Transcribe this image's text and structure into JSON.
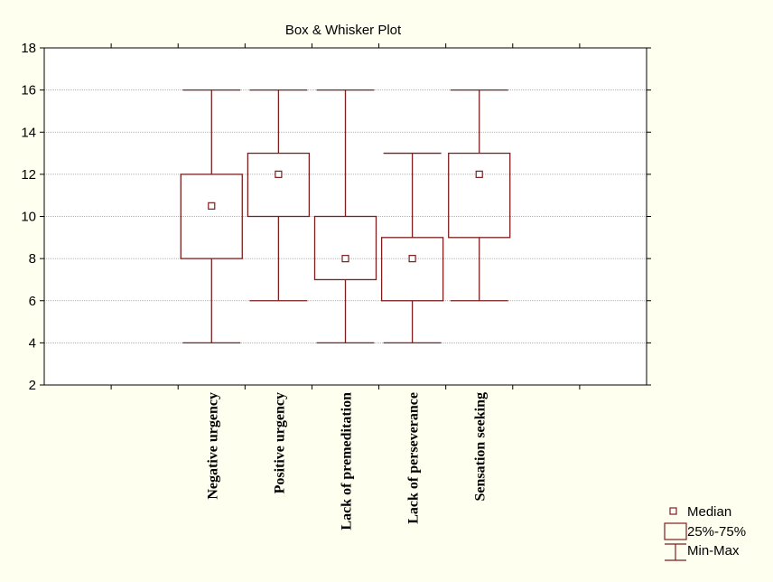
{
  "chart_data": {
    "type": "boxplot",
    "title": "Box & Whisker Plot",
    "xlabel": "",
    "ylabel": "",
    "ylim": [
      2,
      18
    ],
    "yticks": [
      2,
      4,
      6,
      8,
      10,
      12,
      14,
      16,
      18
    ],
    "grid": true,
    "categories": [
      "Negative urgency",
      "Positive urgency",
      "Lack of premeditation",
      "Lack of perseverance",
      "Sensation seeking"
    ],
    "boxes": [
      {
        "min": 4,
        "q1": 8,
        "median": 10.5,
        "q3": 12,
        "max": 16
      },
      {
        "min": 6,
        "q1": 10,
        "median": 12,
        "q3": 13,
        "max": 16
      },
      {
        "min": 4,
        "q1": 7,
        "median": 8,
        "q3": 10,
        "max": 16
      },
      {
        "min": 4,
        "q1": 6,
        "median": 8,
        "q3": 9,
        "max": 13
      },
      {
        "min": 6,
        "q1": 9,
        "median": 12,
        "q3": 13,
        "max": 16
      }
    ],
    "legend": {
      "position": "bottom-right",
      "entries": [
        "Median",
        "25%-75%",
        "Min-Max"
      ]
    },
    "colors": {
      "series": "#7b1f1f",
      "background": "#fffff0",
      "plot_background": "#ffffff",
      "grid": "#9a9a9a"
    }
  }
}
